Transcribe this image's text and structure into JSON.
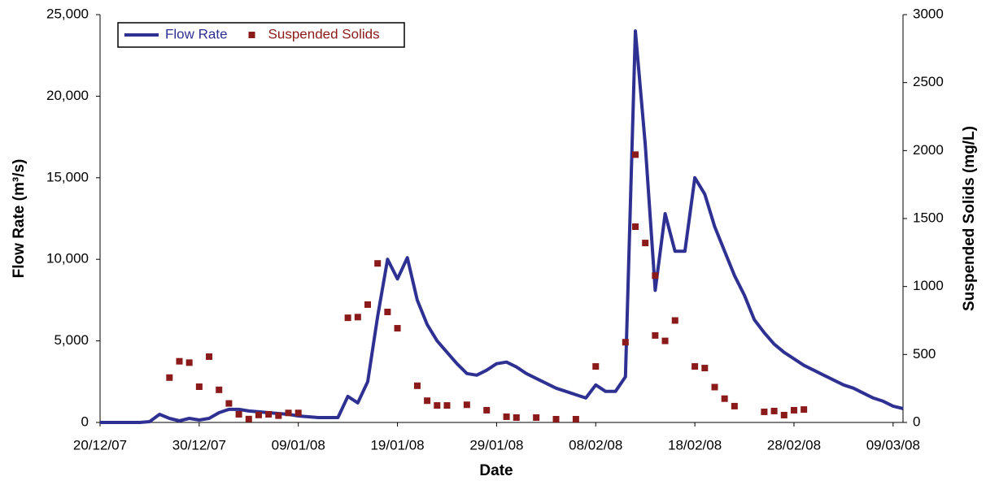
{
  "chart_data": {
    "type": "line",
    "xlabel": "Date",
    "ylabel": "Flow Rate (m³/s)",
    "y2label": "Suspended Solids (mg/L)",
    "xlim": [
      "20/12/07",
      "10/03/08"
    ],
    "xticks": [
      "20/12/07",
      "30/12/07",
      "09/01/08",
      "19/01/08",
      "29/01/08",
      "08/02/08",
      "18/02/08",
      "28/02/08",
      "09/03/08"
    ],
    "ylim": [
      0,
      25000
    ],
    "yticks": [
      0,
      {
        "value": 5000,
        "label": "5,000"
      },
      {
        "value": 10000,
        "label": "10,000"
      },
      {
        "value": 15000,
        "label": "15,000"
      },
      {
        "value": 20000,
        "label": "20,000"
      },
      {
        "value": 25000,
        "label": "25,000"
      }
    ],
    "y2lim": [
      0,
      3000
    ],
    "y2ticks": [
      0,
      500,
      1000,
      1500,
      2000,
      2500,
      3000
    ],
    "legend": "top-left",
    "series": [
      {
        "name": "Flow Rate",
        "type": "line",
        "color": "#2e3192",
        "axis": "y",
        "x": [
          "20/12/07",
          "21/12/07",
          "22/12/07",
          "23/12/07",
          "24/12/07",
          "25/12/07",
          "26/12/07",
          "27/12/07",
          "28/12/07",
          "29/12/07",
          "30/12/07",
          "31/12/07",
          "01/01/08",
          "02/01/08",
          "03/01/08",
          "04/01/08",
          "05/01/08",
          "06/01/08",
          "07/01/08",
          "08/01/08",
          "09/01/08",
          "10/01/08",
          "11/01/08",
          "12/01/08",
          "13/01/08",
          "14/01/08",
          "15/01/08",
          "16/01/08",
          "17/01/08",
          "18/01/08",
          "19/01/08",
          "20/01/08",
          "21/01/08",
          "22/01/08",
          "23/01/08",
          "24/01/08",
          "25/01/08",
          "26/01/08",
          "27/01/08",
          "28/01/08",
          "29/01/08",
          "30/01/08",
          "31/01/08",
          "01/02/08",
          "02/02/08",
          "03/02/08",
          "04/02/08",
          "05/02/08",
          "06/02/08",
          "07/02/08",
          "08/02/08",
          "09/02/08",
          "10/02/08",
          "11/02/08",
          "12/02/08",
          "13/02/08",
          "14/02/08",
          "15/02/08",
          "16/02/08",
          "17/02/08",
          "18/02/08",
          "19/02/08",
          "20/02/08",
          "21/02/08",
          "22/02/08",
          "23/02/08",
          "24/02/08",
          "25/02/08",
          "26/02/08",
          "27/02/08",
          "28/02/08",
          "29/02/08",
          "01/03/08",
          "02/03/08",
          "03/03/08",
          "04/03/08",
          "05/03/08",
          "06/03/08",
          "07/03/08",
          "08/03/08",
          "09/03/08",
          "10/03/08"
        ],
        "values": [
          0,
          0,
          0,
          0,
          0,
          50,
          500,
          250,
          100,
          250,
          150,
          250,
          600,
          800,
          800,
          700,
          650,
          600,
          550,
          500,
          400,
          350,
          300,
          300,
          300,
          1600,
          1200,
          2500,
          6500,
          10000,
          8800,
          10100,
          7500,
          6000,
          5000,
          4300,
          3600,
          3000,
          2900,
          3200,
          3600,
          3700,
          3400,
          3000,
          2700,
          2400,
          2100,
          1900,
          1700,
          1500,
          2300,
          1900,
          1900,
          2800,
          24000,
          17000,
          8100,
          12800,
          10500,
          10500,
          15000,
          14000,
          12000,
          10500,
          9000,
          7800,
          6300,
          5500,
          4800,
          4300,
          3900,
          3500,
          3200,
          2900,
          2600,
          2300,
          2100,
          1800,
          1500,
          1300,
          1000,
          850
        ]
      },
      {
        "name": "Suspended Solids",
        "type": "scatter",
        "color": "#8b1a1a",
        "axis": "y2",
        "x": [
          "27/12/07",
          "28/12/07",
          "29/12/07",
          "30/12/07",
          "31/12/07",
          "01/01/08",
          "02/01/08",
          "03/01/08",
          "04/01/08",
          "05/01/08",
          "06/01/08",
          "07/01/08",
          "08/01/08",
          "09/01/08",
          "14/01/08",
          "15/01/08",
          "16/01/08",
          "17/01/08",
          "18/01/08",
          "19/01/08",
          "21/01/08",
          "22/01/08",
          "23/01/08",
          "24/01/08",
          "26/01/08",
          "28/01/08",
          "30/01/08",
          "31/01/08",
          "02/02/08",
          "04/02/08",
          "06/02/08",
          "08/02/08",
          "11/02/08",
          "12/02/08",
          "12/02/08",
          "13/02/08",
          "14/02/08",
          "14/02/08",
          "15/02/08",
          "16/02/08",
          "18/02/08",
          "19/02/08",
          "20/02/08",
          "21/02/08",
          "22/02/08",
          "25/02/08",
          "26/02/08",
          "27/02/08",
          "28/02/08",
          "29/02/08"
        ],
        "values": [
          330,
          450,
          440,
          263,
          484,
          240,
          140,
          60,
          25,
          55,
          60,
          50,
          70,
          70,
          770,
          775,
          867,
          1170,
          813,
          693,
          270,
          160,
          125,
          125,
          130,
          90,
          42,
          36,
          36,
          24,
          24,
          412,
          590,
          1970,
          1440,
          1320,
          1080,
          640,
          600,
          750,
          412,
          400,
          260,
          175,
          120,
          78,
          84,
          54,
          90,
          95
        ]
      }
    ]
  }
}
